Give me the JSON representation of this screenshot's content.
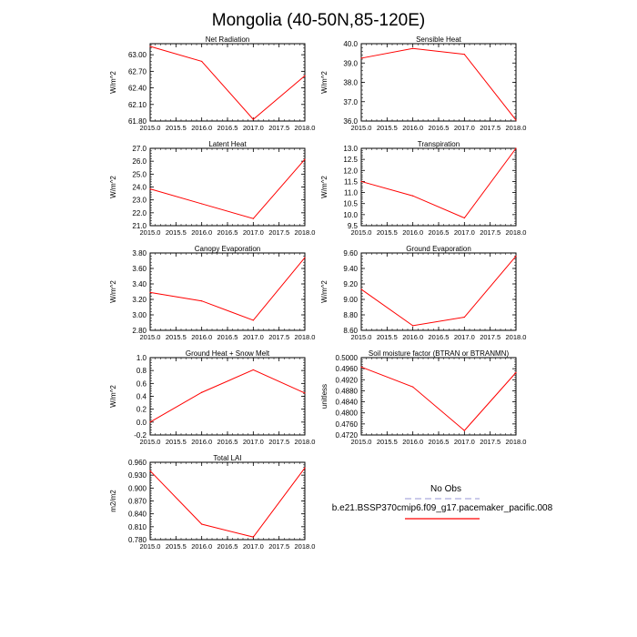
{
  "figure": {
    "title": "Mongolia (40-50N,85-120E)"
  },
  "legend": {
    "entries": [
      {
        "label": "No Obs",
        "color": "#aaaadd",
        "style": "dashed"
      },
      {
        "label": "b.e21.BSSP370cmip6.f09_g17.pacemaker_pacific.008",
        "color": "#ff0000",
        "style": "solid"
      }
    ]
  },
  "chart_data": [
    {
      "type": "line",
      "title": "Net Radiation",
      "ylabel": "W/m^2",
      "xlabel": "",
      "x": [
        2015,
        2016,
        2017,
        2018
      ],
      "xlim": [
        2015.0,
        2018.0
      ],
      "xticks": [
        "2015.0",
        "2015.5",
        "2016.0",
        "2016.5",
        "2017.0",
        "2017.5",
        "2018.0"
      ],
      "ylim": [
        61.8,
        63.2
      ],
      "yticks": [
        "61.80",
        "62.10",
        "62.40",
        "62.70",
        "63.00"
      ],
      "series": [
        {
          "name": "b.e21.BSSP370cmip6.f09_g17.pacemaker_pacific.008",
          "values": [
            63.15,
            62.88,
            61.83,
            62.62
          ]
        }
      ]
    },
    {
      "type": "line",
      "title": "Sensible Heat",
      "ylabel": "W/m^2",
      "xlabel": "",
      "x": [
        2015,
        2016,
        2017,
        2018
      ],
      "xlim": [
        2015.0,
        2018.0
      ],
      "xticks": [
        "2015.0",
        "2015.5",
        "2016.0",
        "2016.5",
        "2017.0",
        "2017.5",
        "2018.0"
      ],
      "ylim": [
        36.0,
        40.0
      ],
      "yticks": [
        "36.0",
        "37.0",
        "38.0",
        "39.0",
        "40.0"
      ],
      "series": [
        {
          "name": "b.e21.BSSP370cmip6.f09_g17.pacemaker_pacific.008",
          "values": [
            39.25,
            39.75,
            39.45,
            36.05
          ]
        }
      ]
    },
    {
      "type": "line",
      "title": "Latent Heat",
      "ylabel": "W/m^2",
      "xlabel": "",
      "x": [
        2015,
        2016,
        2017,
        2018
      ],
      "xlim": [
        2015.0,
        2018.0
      ],
      "xticks": [
        "2015.0",
        "2015.5",
        "2016.0",
        "2016.5",
        "2017.0",
        "2017.5",
        "2018.0"
      ],
      "ylim": [
        21.0,
        27.0
      ],
      "yticks": [
        "21.0",
        "22.0",
        "23.0",
        "24.0",
        "25.0",
        "26.0",
        "27.0"
      ],
      "series": [
        {
          "name": "b.e21.BSSP370cmip6.f09_g17.pacemaker_pacific.008",
          "values": [
            23.85,
            22.7,
            21.55,
            26.15
          ]
        }
      ]
    },
    {
      "type": "line",
      "title": "Transpiration",
      "ylabel": "W/m^2",
      "xlabel": "",
      "x": [
        2015,
        2016,
        2017,
        2018
      ],
      "xlim": [
        2015.0,
        2018.0
      ],
      "xticks": [
        "2015.0",
        "2015.5",
        "2016.0",
        "2016.5",
        "2017.0",
        "2017.5",
        "2018.0"
      ],
      "ylim": [
        9.5,
        13.0
      ],
      "yticks": [
        "9.5",
        "10.0",
        "10.5",
        "11.0",
        "11.5",
        "12.0",
        "12.5",
        "13.0"
      ],
      "series": [
        {
          "name": "b.e21.BSSP370cmip6.f09_g17.pacemaker_pacific.008",
          "values": [
            11.5,
            10.85,
            9.85,
            13.0
          ]
        }
      ]
    },
    {
      "type": "line",
      "title": "Canopy Evaporation",
      "ylabel": "W/m^2",
      "xlabel": "",
      "x": [
        2015,
        2016,
        2017,
        2018
      ],
      "xlim": [
        2015.0,
        2018.0
      ],
      "xticks": [
        "2015.0",
        "2015.5",
        "2016.0",
        "2016.5",
        "2017.0",
        "2017.5",
        "2018.0"
      ],
      "ylim": [
        2.8,
        3.8
      ],
      "yticks": [
        "2.80",
        "3.00",
        "3.20",
        "3.40",
        "3.60",
        "3.80"
      ],
      "series": [
        {
          "name": "b.e21.BSSP370cmip6.f09_g17.pacemaker_pacific.008",
          "values": [
            3.29,
            3.18,
            2.93,
            3.74
          ]
        }
      ]
    },
    {
      "type": "line",
      "title": "Ground Evaporation",
      "ylabel": "W/m^2",
      "xlabel": "",
      "x": [
        2015,
        2016,
        2017,
        2018
      ],
      "xlim": [
        2015.0,
        2018.0
      ],
      "xticks": [
        "2015.0",
        "2015.5",
        "2016.0",
        "2016.5",
        "2017.0",
        "2017.5",
        "2018.0"
      ],
      "ylim": [
        8.6,
        9.6
      ],
      "yticks": [
        "8.60",
        "8.80",
        "9.00",
        "9.20",
        "9.40",
        "9.60"
      ],
      "series": [
        {
          "name": "b.e21.BSSP370cmip6.f09_g17.pacemaker_pacific.008",
          "values": [
            9.13,
            8.66,
            8.77,
            9.56
          ]
        }
      ]
    },
    {
      "type": "line",
      "title": "Ground Heat + Snow Melt",
      "ylabel": "W/m^2",
      "xlabel": "",
      "x": [
        2015,
        2016,
        2017,
        2018
      ],
      "xlim": [
        2015.0,
        2018.0
      ],
      "xticks": [
        "2015.0",
        "2015.5",
        "2016.0",
        "2016.5",
        "2017.0",
        "2017.5",
        "2018.0"
      ],
      "ylim": [
        -0.2,
        1.0
      ],
      "yticks": [
        "-0.2",
        "0.0",
        "0.2",
        "0.4",
        "0.6",
        "0.8",
        "1.0"
      ],
      "series": [
        {
          "name": "b.e21.BSSP370cmip6.f09_g17.pacemaker_pacific.008",
          "values": [
            0.0,
            0.46,
            0.81,
            0.45
          ]
        }
      ]
    },
    {
      "type": "line",
      "title": "Soil moisture factor (BTRAN or BTRANMN)",
      "ylabel": "unitless",
      "xlabel": "",
      "x": [
        2015,
        2016,
        2017,
        2018
      ],
      "xlim": [
        2015.0,
        2018.0
      ],
      "xticks": [
        "2015.0",
        "2015.5",
        "2016.0",
        "2016.5",
        "2017.0",
        "2017.5",
        "2018.0"
      ],
      "ylim": [
        0.472,
        0.5
      ],
      "yticks": [
        "0.4720",
        "0.4760",
        "0.4800",
        "0.4840",
        "0.4880",
        "0.4920",
        "0.4960",
        "0.5000"
      ],
      "series": [
        {
          "name": "b.e21.BSSP370cmip6.f09_g17.pacemaker_pacific.008",
          "values": [
            0.4966,
            0.4894,
            0.4736,
            0.4946
          ]
        }
      ]
    },
    {
      "type": "line",
      "title": "Total LAI",
      "ylabel": "m2/m2",
      "xlabel": "",
      "x": [
        2015,
        2016,
        2017,
        2018
      ],
      "xlim": [
        2015.0,
        2018.0
      ],
      "xticks": [
        "2015.0",
        "2015.5",
        "2016.0",
        "2016.5",
        "2017.0",
        "2017.5",
        "2018.0"
      ],
      "ylim": [
        0.78,
        0.96
      ],
      "yticks": [
        "0.780",
        "0.810",
        "0.840",
        "0.870",
        "0.900",
        "0.930",
        "0.960"
      ],
      "series": [
        {
          "name": "b.e21.BSSP370cmip6.f09_g17.pacemaker_pacific.008",
          "values": [
            0.94,
            0.816,
            0.786,
            0.947
          ]
        }
      ]
    }
  ]
}
